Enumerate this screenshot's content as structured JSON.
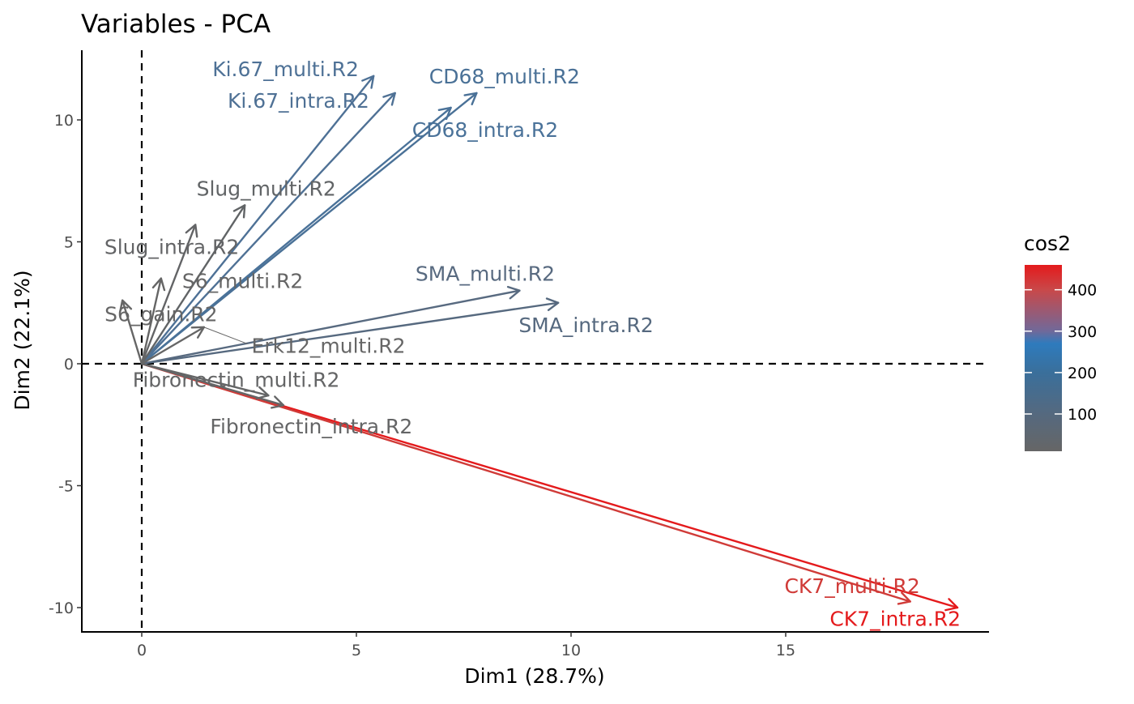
{
  "chart_data": {
    "type": "scatter",
    "subtype": "pca-variable-arrows",
    "title": "Variables - PCA",
    "xlabel": "Dim1 (28.7%)",
    "ylabel": "Dim2 (22.1%)",
    "xlim": [
      -1.4,
      19.8
    ],
    "ylim": [
      -11,
      12.8
    ],
    "x_ticks": [
      0,
      5,
      10,
      15
    ],
    "y_ticks": [
      -10,
      -5,
      0,
      5,
      10
    ],
    "grid": false,
    "reference_lines": {
      "x": 0,
      "y": 0,
      "style": "dashed"
    },
    "color_scale": {
      "title": "cos2",
      "domain": [
        10,
        460
      ],
      "ticks": [
        100,
        200,
        300,
        400
      ],
      "stops": [
        {
          "value": 10,
          "color": "#666666"
        },
        {
          "value": 100,
          "color": "#55697f"
        },
        {
          "value": 200,
          "color": "#3a6f9b"
        },
        {
          "value": 270,
          "color": "#2e7bbd"
        },
        {
          "value": 300,
          "color": "#70699a"
        },
        {
          "value": 400,
          "color": "#c94849"
        },
        {
          "value": 460,
          "color": "#e41a1c"
        }
      ],
      "legend_position": "right"
    },
    "series": [
      {
        "name": "CK7_intra.R2",
        "x": 19.0,
        "y": -10.0,
        "cos2": 460,
        "color": "#e41a1c"
      },
      {
        "name": "CK7_multi.R2",
        "x": 17.9,
        "y": -9.75,
        "cos2": 420,
        "color": "#d03b38"
      },
      {
        "name": "CD68_multi.R2",
        "x": 7.8,
        "y": 11.1,
        "cos2": 185,
        "color": "#4a7197"
      },
      {
        "name": "CD68_intra.R2",
        "x": 7.2,
        "y": 10.5,
        "cos2": 170,
        "color": "#4a7299"
      },
      {
        "name": "Ki.67_multi.R2",
        "x": 5.4,
        "y": 11.8,
        "cos2": 165,
        "color": "#4e7196"
      },
      {
        "name": "Ki.67_intra.R2",
        "x": 5.9,
        "y": 11.1,
        "cos2": 160,
        "color": "#4f7195"
      },
      {
        "name": "SMA_intra.R2",
        "x": 9.7,
        "y": 2.5,
        "cos2": 100,
        "color": "#56697f"
      },
      {
        "name": "SMA_multi.R2",
        "x": 8.8,
        "y": 3.0,
        "cos2": 95,
        "color": "#586a80"
      },
      {
        "name": "Slug_multi.R2",
        "x": 2.4,
        "y": 6.5,
        "cos2": 50,
        "color": "#616466"
      },
      {
        "name": "Slug_intra.R2",
        "x": 1.25,
        "y": 5.7,
        "cos2": 35,
        "color": "#636466"
      },
      {
        "name": "S6_multi.R2",
        "x": 0.45,
        "y": 3.5,
        "cos2": 15,
        "color": "#656565"
      },
      {
        "name": "S6_gain.R2",
        "x": -0.45,
        "y": 2.6,
        "cos2": 10,
        "color": "#666666"
      },
      {
        "name": "Erk12_multi.R2",
        "x": 1.45,
        "y": 1.5,
        "cos2": 12,
        "color": "#666666"
      },
      {
        "name": "Fibronectin_multi.R2",
        "x": 2.95,
        "y": -1.3,
        "cos2": 15,
        "color": "#646566"
      },
      {
        "name": "Fibronectin_intra.R2",
        "x": 3.3,
        "y": -1.7,
        "cos2": 18,
        "color": "#646566"
      }
    ],
    "labels": [
      {
        "text": "Ki.67_multi.R2",
        "x": 3.35,
        "y": 12.1,
        "color": "#4e7196"
      },
      {
        "text": "Ki.67_intra.R2",
        "x": 3.65,
        "y": 10.8,
        "color": "#4f7195"
      },
      {
        "text": "CD68_multi.R2",
        "x": 8.45,
        "y": 11.8,
        "color": "#4a7197"
      },
      {
        "text": "CD68_intra.R2",
        "x": 8.0,
        "y": 9.6,
        "color": "#4a7299"
      },
      {
        "text": "Slug_multi.R2",
        "x": 2.9,
        "y": 7.2,
        "color": "#616466"
      },
      {
        "text": "Slug_intra.R2",
        "x": 0.7,
        "y": 4.8,
        "color": "#636466"
      },
      {
        "text": "S6_multi.R2",
        "x": 2.35,
        "y": 3.4,
        "color": "#656565"
      },
      {
        "text": "S6_gain.R2",
        "x": 0.45,
        "y": 2.05,
        "color": "#666666"
      },
      {
        "text": "Erk12_multi.R2",
        "x": 4.35,
        "y": 0.75,
        "color": "#666666"
      },
      {
        "text": "Fibronectin_multi.R2",
        "x": 2.2,
        "y": -0.65,
        "color": "#646566"
      },
      {
        "text": "Fibronectin_intra.R2",
        "x": 3.95,
        "y": -2.55,
        "color": "#646566"
      },
      {
        "text": "SMA_multi.R2",
        "x": 8.0,
        "y": 3.7,
        "color": "#586a80"
      },
      {
        "text": "SMA_intra.R2",
        "x": 10.35,
        "y": 1.6,
        "color": "#56697f"
      },
      {
        "text": "CK7_multi.R2",
        "x": 16.55,
        "y": -9.1,
        "color": "#d03b38"
      },
      {
        "text": "CK7_intra.R2",
        "x": 17.55,
        "y": -10.45,
        "color": "#e41a1c"
      }
    ]
  }
}
